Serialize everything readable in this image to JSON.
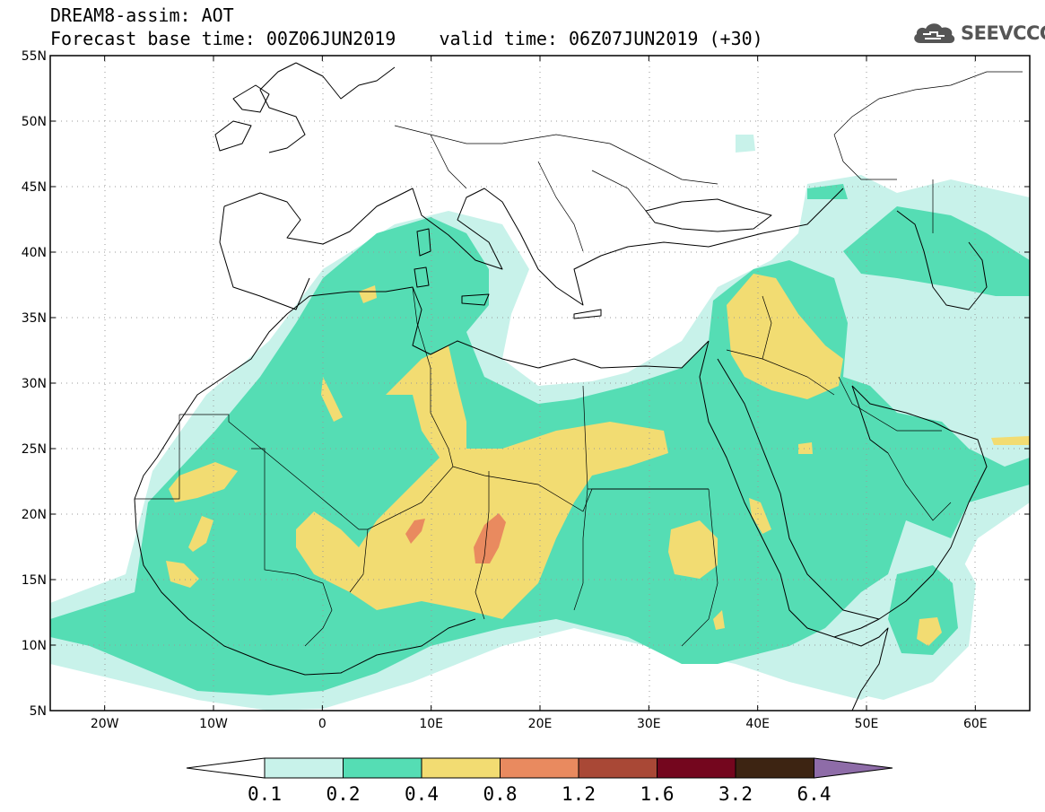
{
  "header": {
    "title_line1": "DREAM8-assim: AOT",
    "base_time": "Forecast base time: 00Z06JUN2019",
    "valid_time": "valid time: 06Z07JUN2019 (+30)"
  },
  "logo": {
    "text": "SEEVCCC",
    "icon": "cloud-icon"
  },
  "map": {
    "lon_labels": [
      "20W",
      "10W",
      "0",
      "10E",
      "20E",
      "30E",
      "40E",
      "50E",
      "60E"
    ],
    "lon_values": [
      -20,
      -10,
      0,
      10,
      20,
      30,
      40,
      50,
      60
    ],
    "lat_labels": [
      "55N",
      "50N",
      "45N",
      "40N",
      "35N",
      "30N",
      "25N",
      "20N",
      "15N",
      "10N",
      "5N"
    ],
    "lat_values": [
      55,
      50,
      45,
      40,
      35,
      30,
      25,
      20,
      15,
      10,
      5
    ],
    "lon_range": [
      -25,
      65
    ],
    "lat_range": [
      5,
      55
    ],
    "grid": "dotted"
  },
  "colorbar": {
    "labels": [
      "0.1",
      "0.2",
      "0.4",
      "0.8",
      "1.2",
      "1.6",
      "3.2",
      "6.4"
    ],
    "colors": [
      "#c8f2ea",
      "#55ddb4",
      "#f2dc72",
      "#e98a5f",
      "#a94836",
      "#74061e",
      "#3d2412",
      "#8e6ca8"
    ],
    "first_color": "#ffffff"
  }
}
